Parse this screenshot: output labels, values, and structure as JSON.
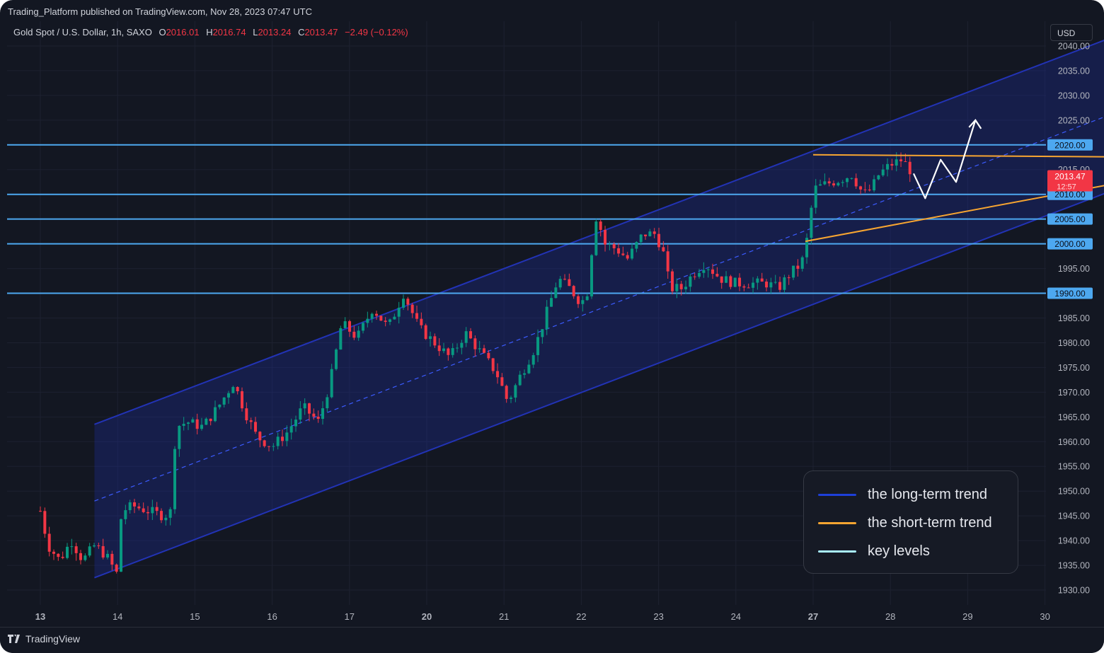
{
  "header": {
    "published": "Trading_Platform published on TradingView.com, Nov 28, 2023 07:47 UTC",
    "instrument": "Gold Spot / U.S. Dollar, 1h, SAXO",
    "open_label": "O",
    "open": "2016.01",
    "high_label": "H",
    "high": "2016.74",
    "low_label": "L",
    "low": "2013.24",
    "close_label": "C",
    "close": "2013.47",
    "change": "−2.49 (−0.12%)"
  },
  "currency_button": "USD",
  "footer": {
    "brand": "TradingView"
  },
  "legend": {
    "items": [
      {
        "label": "the long-term trend",
        "color": "#1e3fd9"
      },
      {
        "label": "the short-term trend",
        "color": "#f7a531"
      },
      {
        "label": "key levels",
        "color": "#a9f0ff"
      }
    ]
  },
  "colors": {
    "background": "#131722",
    "up_candle": "#089981",
    "down_candle": "#f23645",
    "channel": "#2233b5",
    "key_level": "#4da8f0",
    "short_trend": "#f7a531",
    "projection": "#ffffff"
  },
  "chart_data": {
    "type": "candlestick",
    "symbol": "Gold Spot / U.S. Dollar",
    "interval": "1h",
    "ylim": [
      1927,
      2045
    ],
    "y_ticks": [
      "2040.00",
      "2035.00",
      "2030.00",
      "2025.00",
      "2020.00",
      "2015.00",
      "2010.00",
      "2005.00",
      "2000.00",
      "1995.00",
      "1990.00",
      "1985.00",
      "1980.00",
      "1975.00",
      "1970.00",
      "1965.00",
      "1960.00",
      "1955.00",
      "1950.00",
      "1945.00",
      "1940.00",
      "1935.00",
      "1930.00"
    ],
    "x_ticks": [
      {
        "label": "13",
        "bold": true
      },
      {
        "label": "14",
        "bold": false
      },
      {
        "label": "15",
        "bold": false
      },
      {
        "label": "16",
        "bold": false
      },
      {
        "label": "17",
        "bold": false
      },
      {
        "label": "20",
        "bold": true
      },
      {
        "label": "21",
        "bold": false
      },
      {
        "label": "22",
        "bold": false
      },
      {
        "label": "23",
        "bold": false
      },
      {
        "label": "24",
        "bold": false
      },
      {
        "label": "27",
        "bold": true
      },
      {
        "label": "28",
        "bold": false
      },
      {
        "label": "29",
        "bold": false
      },
      {
        "label": "30",
        "bold": false
      }
    ],
    "path": [
      [
        13.0,
        1946
      ],
      [
        13.1,
        1939
      ],
      [
        13.25,
        1936
      ],
      [
        13.4,
        1940
      ],
      [
        13.55,
        1936
      ],
      [
        13.7,
        1939
      ],
      [
        13.85,
        1937
      ],
      [
        14.0,
        1933
      ],
      [
        14.05,
        1946
      ],
      [
        14.2,
        1947
      ],
      [
        14.4,
        1946
      ],
      [
        14.6,
        1945
      ],
      [
        14.7,
        1946
      ],
      [
        14.75,
        1963
      ],
      [
        14.9,
        1964
      ],
      [
        15.1,
        1963
      ],
      [
        15.3,
        1967
      ],
      [
        15.5,
        1972
      ],
      [
        15.65,
        1966
      ],
      [
        15.8,
        1961
      ],
      [
        16.0,
        1959
      ],
      [
        16.2,
        1962
      ],
      [
        16.4,
        1967
      ],
      [
        16.6,
        1964
      ],
      [
        16.75,
        1972
      ],
      [
        16.9,
        1984
      ],
      [
        17.1,
        1981
      ],
      [
        17.3,
        1987
      ],
      [
        17.5,
        1983
      ],
      [
        17.7,
        1990
      ],
      [
        17.9,
        1983
      ],
      [
        18.1,
        1980
      ],
      [
        18.3,
        1977
      ],
      [
        18.5,
        1982
      ],
      [
        18.7,
        1978
      ],
      [
        18.9,
        1974
      ],
      [
        19.05,
        1968
      ],
      [
        19.2,
        1973
      ],
      [
        19.4,
        1979
      ],
      [
        19.55,
        1986
      ],
      [
        19.7,
        1993
      ],
      [
        19.85,
        1991
      ],
      [
        20.0,
        1988
      ],
      [
        20.1,
        1991
      ],
      [
        20.15,
        2002
      ],
      [
        20.2,
        2006
      ],
      [
        20.3,
        2000
      ],
      [
        20.45,
        1999
      ],
      [
        20.6,
        1997
      ],
      [
        20.8,
        2002
      ],
      [
        20.95,
        2002
      ],
      [
        21.05,
        1999
      ],
      [
        21.15,
        1991
      ],
      [
        21.3,
        1991
      ],
      [
        21.45,
        1994
      ],
      [
        21.6,
        1996
      ],
      [
        21.8,
        1993
      ],
      [
        22.0,
        1992
      ],
      [
        22.2,
        1992
      ],
      [
        22.4,
        1992
      ],
      [
        22.55,
        1991
      ],
      [
        22.7,
        1994
      ],
      [
        22.85,
        1996
      ],
      [
        22.95,
        2003
      ],
      [
        23.0,
        2011
      ],
      [
        23.15,
        2012
      ],
      [
        23.35,
        2013
      ],
      [
        23.5,
        2014
      ],
      [
        23.65,
        2010
      ],
      [
        23.75,
        2011
      ],
      [
        23.85,
        2014
      ],
      [
        24.0,
        2016
      ],
      [
        24.15,
        2017
      ],
      [
        24.3,
        2014
      ]
    ],
    "last_price": "2013.47",
    "countdown": "12:57",
    "key_levels": [
      2020,
      2010,
      2005,
      2000,
      1990
    ],
    "long_term_channel": {
      "mid_start": [
        13.7,
        1948
      ],
      "mid_end": [
        27.5,
        2030
      ],
      "upper_offset": 15.5,
      "lower_offset": 15.5
    },
    "short_term_trend": {
      "resistance": [
        [
          23.0,
          2018
        ],
        [
          27.6,
          2017.5
        ]
      ],
      "support": [
        [
          22.9,
          2000.5
        ],
        [
          27.7,
          2014.5
        ]
      ]
    },
    "projection": [
      [
        24.3,
        2014.2
      ],
      [
        24.45,
        2009.2
      ],
      [
        24.65,
        2017
      ],
      [
        24.85,
        2012.5
      ],
      [
        25.1,
        2025
      ]
    ]
  }
}
